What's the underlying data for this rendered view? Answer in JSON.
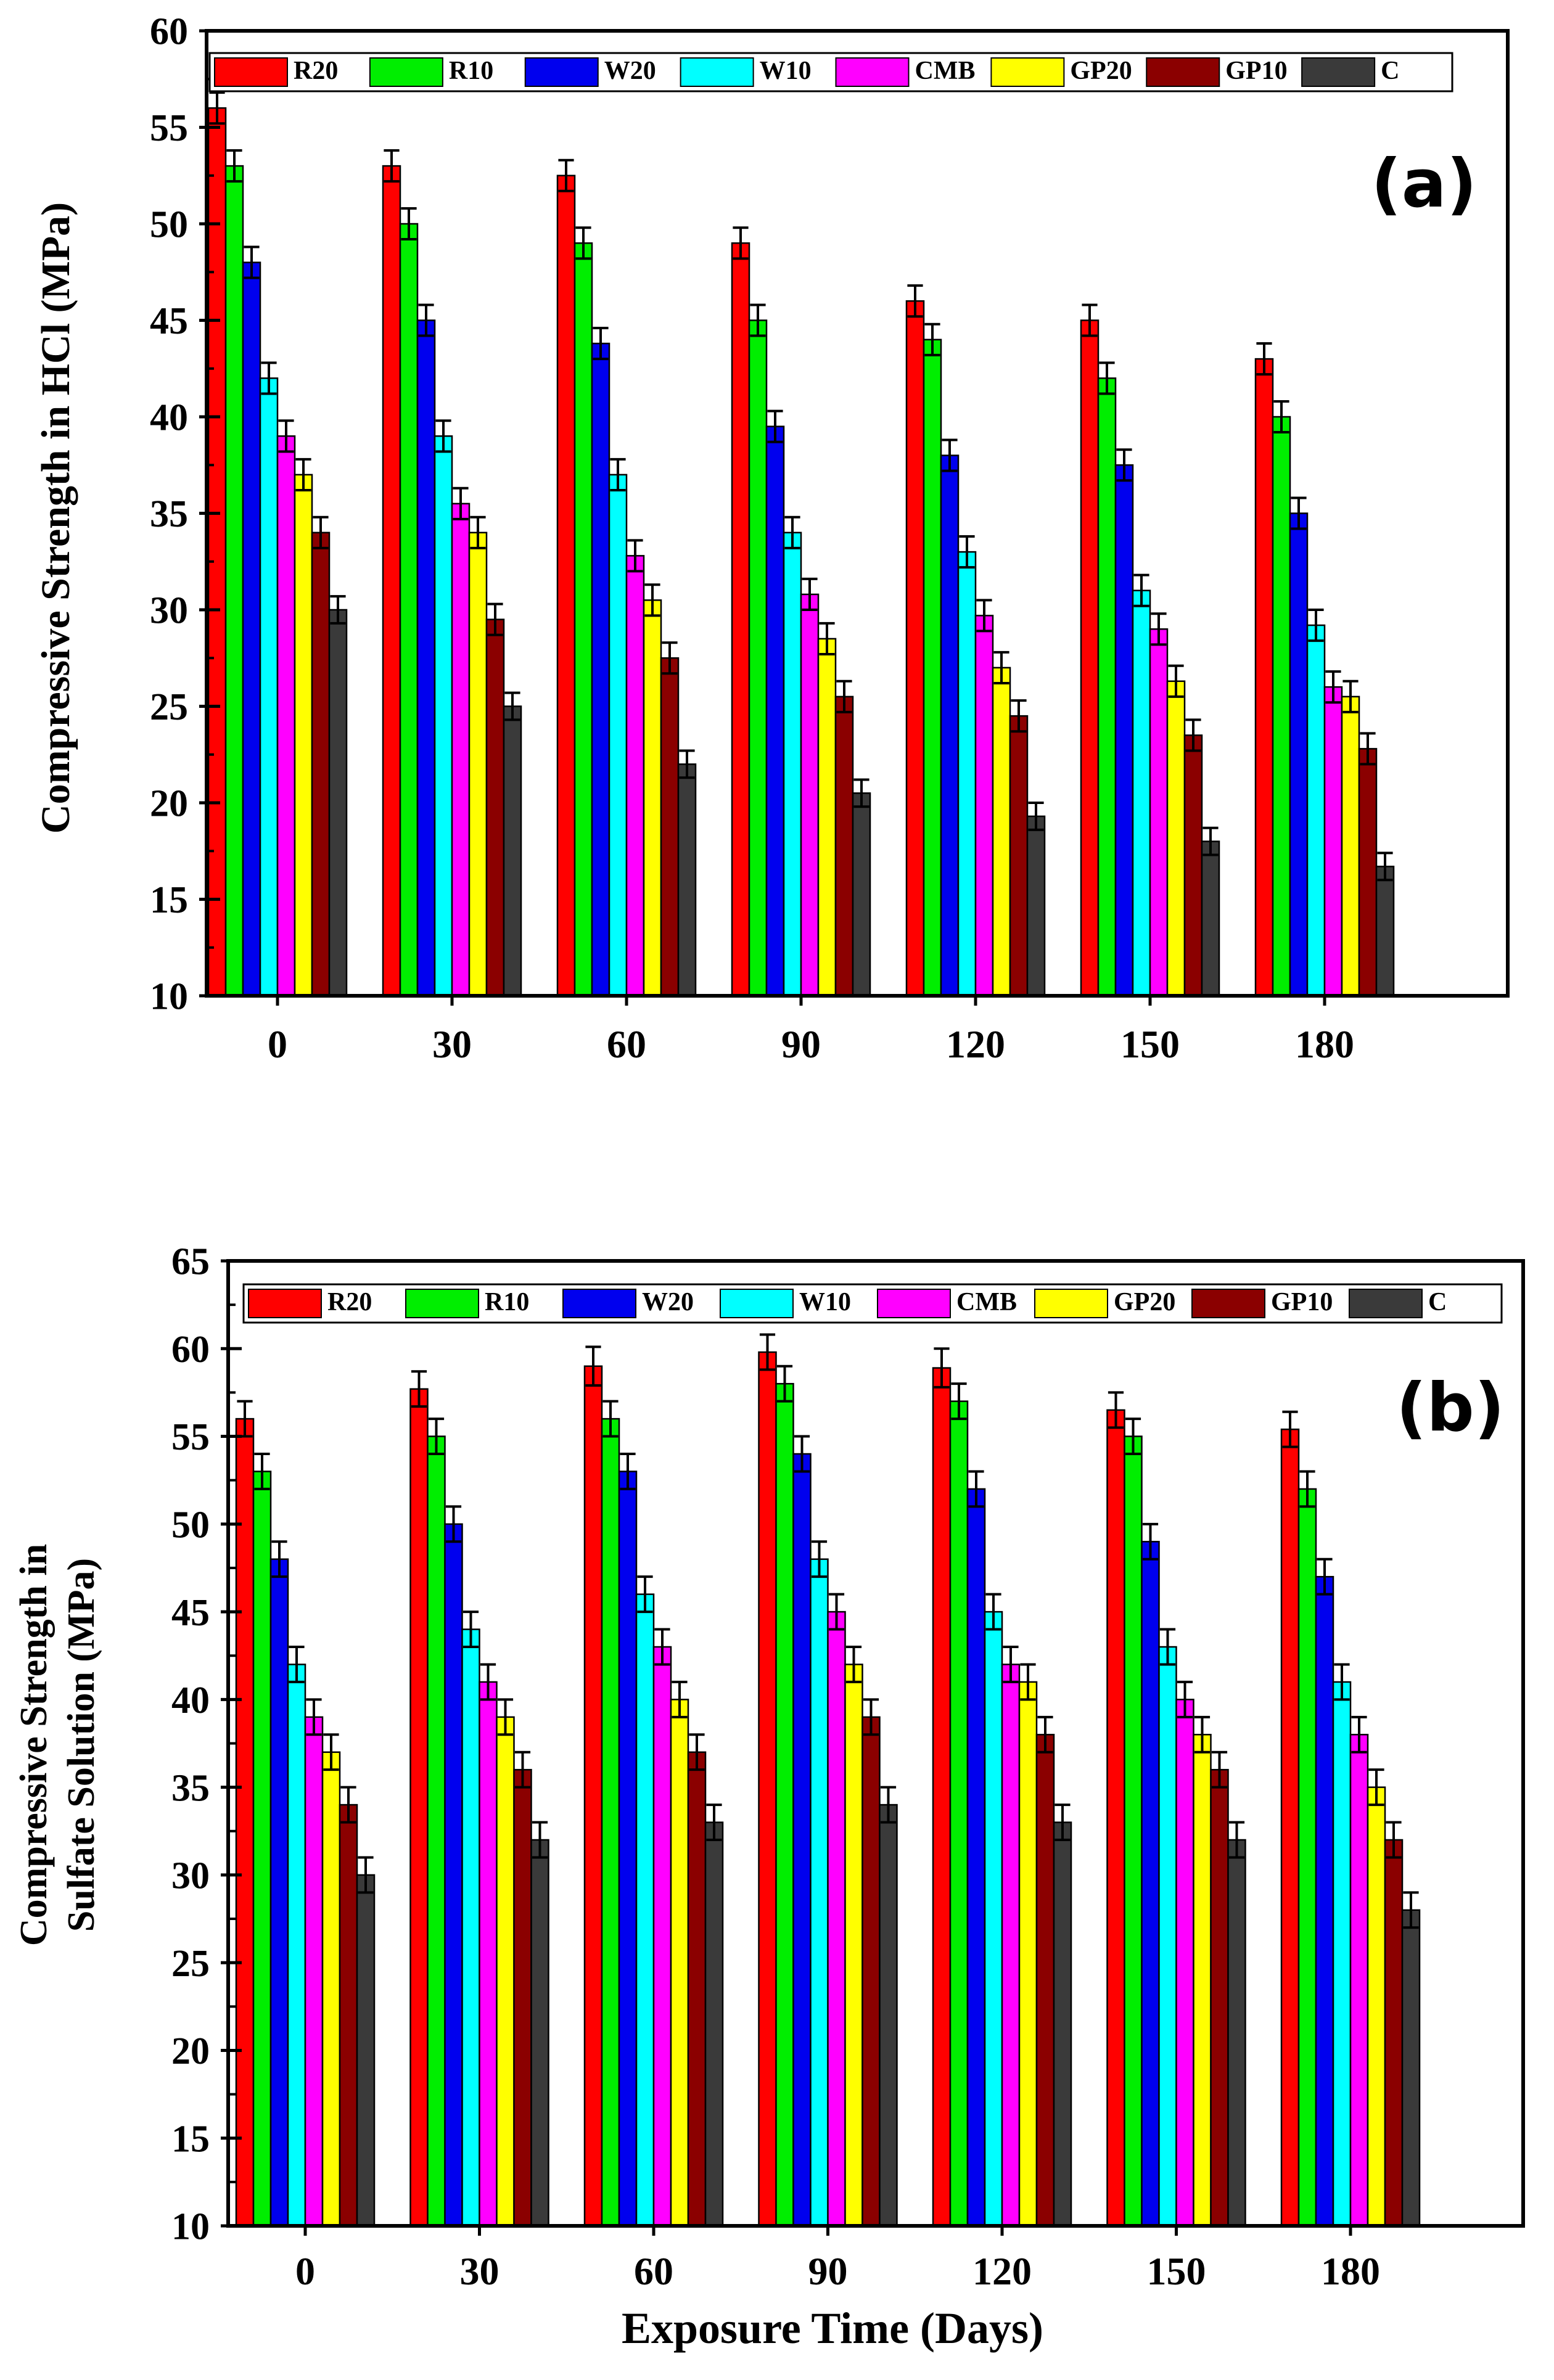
{
  "figure": {
    "shared_xlabel": "Exposure Time (Days)"
  },
  "chart_data": [
    {
      "type": "bar",
      "panel_label": "(a)",
      "title": "",
      "xlabel": "",
      "ylabel": "Compressive Strength in HCl (MPa)",
      "ylim": [
        10,
        60
      ],
      "ytick_step": 5,
      "grid": false,
      "legend_position": "top",
      "categories": [
        "0",
        "30",
        "60",
        "90",
        "120",
        "150",
        "180"
      ],
      "series": [
        {
          "name": "R20",
          "color": "#ff0000",
          "values": [
            56,
            53,
            52.5,
            49,
            46,
            45,
            43
          ],
          "errors": [
            0.8,
            0.8,
            0.8,
            0.8,
            0.8,
            0.8,
            0.8
          ]
        },
        {
          "name": "R10",
          "color": "#00ee00",
          "values": [
            53,
            50,
            49,
            45,
            44,
            42,
            40
          ],
          "errors": [
            0.8,
            0.8,
            0.8,
            0.8,
            0.8,
            0.8,
            0.8
          ]
        },
        {
          "name": "W20",
          "color": "#0000ee",
          "values": [
            48,
            45,
            43.8,
            39.5,
            38,
            37.5,
            35
          ],
          "errors": [
            0.8,
            0.8,
            0.8,
            0.8,
            0.8,
            0.8,
            0.8
          ]
        },
        {
          "name": "W10",
          "color": "#00ffff",
          "values": [
            42,
            39,
            37,
            34,
            33,
            31,
            29.2
          ],
          "errors": [
            0.8,
            0.8,
            0.8,
            0.8,
            0.8,
            0.8,
            0.8
          ]
        },
        {
          "name": "CMB",
          "color": "#ff00ff",
          "values": [
            39,
            35.5,
            32.8,
            30.8,
            29.7,
            29,
            26
          ],
          "errors": [
            0.8,
            0.8,
            0.8,
            0.8,
            0.8,
            0.8,
            0.8
          ]
        },
        {
          "name": "GP20",
          "color": "#ffff00",
          "values": [
            37,
            34,
            30.5,
            28.5,
            27,
            26.3,
            25.5
          ],
          "errors": [
            0.8,
            0.8,
            0.8,
            0.8,
            0.8,
            0.8,
            0.8
          ]
        },
        {
          "name": "GP10",
          "color": "#8b0000",
          "values": [
            34,
            29.5,
            27.5,
            25.5,
            24.5,
            23.5,
            22.8
          ],
          "errors": [
            0.8,
            0.8,
            0.8,
            0.8,
            0.8,
            0.8,
            0.8
          ]
        },
        {
          "name": "C",
          "color": "#3a3a3a",
          "values": [
            30,
            25,
            22,
            20.5,
            19.3,
            18,
            16.7
          ],
          "errors": [
            0.7,
            0.7,
            0.7,
            0.7,
            0.7,
            0.7,
            0.7
          ]
        }
      ]
    },
    {
      "type": "bar",
      "panel_label": "(b)",
      "title": "",
      "xlabel": "Exposure Time (Days)",
      "ylabel_lines": [
        "Compressive Strength in",
        "Sulfate Solution (MPa)"
      ],
      "ylim": [
        10,
        65
      ],
      "ytick_step": 5,
      "grid": false,
      "legend_position": "top",
      "categories": [
        "0",
        "30",
        "60",
        "90",
        "120",
        "150",
        "180"
      ],
      "series": [
        {
          "name": "R20",
          "color": "#ff0000",
          "values": [
            56,
            57.7,
            59,
            59.8,
            58.9,
            56.5,
            55.4
          ],
          "errors": [
            1,
            1,
            1.1,
            1,
            1.1,
            1,
            1
          ]
        },
        {
          "name": "R10",
          "color": "#00ee00",
          "values": [
            53,
            55,
            56,
            58,
            57,
            55,
            52
          ],
          "errors": [
            1,
            1,
            1,
            1,
            1,
            1,
            1
          ]
        },
        {
          "name": "W20",
          "color": "#0000ee",
          "values": [
            48,
            50,
            53,
            54,
            52,
            49,
            47
          ],
          "errors": [
            1,
            1,
            1,
            1,
            1,
            1,
            1
          ]
        },
        {
          "name": "W10",
          "color": "#00ffff",
          "values": [
            42,
            44,
            46,
            48,
            45,
            43,
            41
          ],
          "errors": [
            1,
            1,
            1,
            1,
            1,
            1,
            1
          ]
        },
        {
          "name": "CMB",
          "color": "#ff00ff",
          "values": [
            39,
            41,
            43,
            45,
            42,
            40,
            38
          ],
          "errors": [
            1,
            1,
            1,
            1,
            1,
            1,
            1
          ]
        },
        {
          "name": "GP20",
          "color": "#ffff00",
          "values": [
            37,
            39,
            40,
            42,
            41,
            38,
            35
          ],
          "errors": [
            1,
            1,
            1,
            1,
            1,
            1,
            1
          ]
        },
        {
          "name": "GP10",
          "color": "#8b0000",
          "values": [
            34,
            36,
            37,
            39,
            38,
            36,
            32
          ],
          "errors": [
            1,
            1,
            1,
            1,
            1,
            1,
            1
          ]
        },
        {
          "name": "C",
          "color": "#3a3a3a",
          "values": [
            30,
            32,
            33,
            34,
            33,
            32,
            28
          ],
          "errors": [
            1,
            1,
            1,
            1,
            1,
            1,
            1
          ]
        }
      ]
    }
  ]
}
